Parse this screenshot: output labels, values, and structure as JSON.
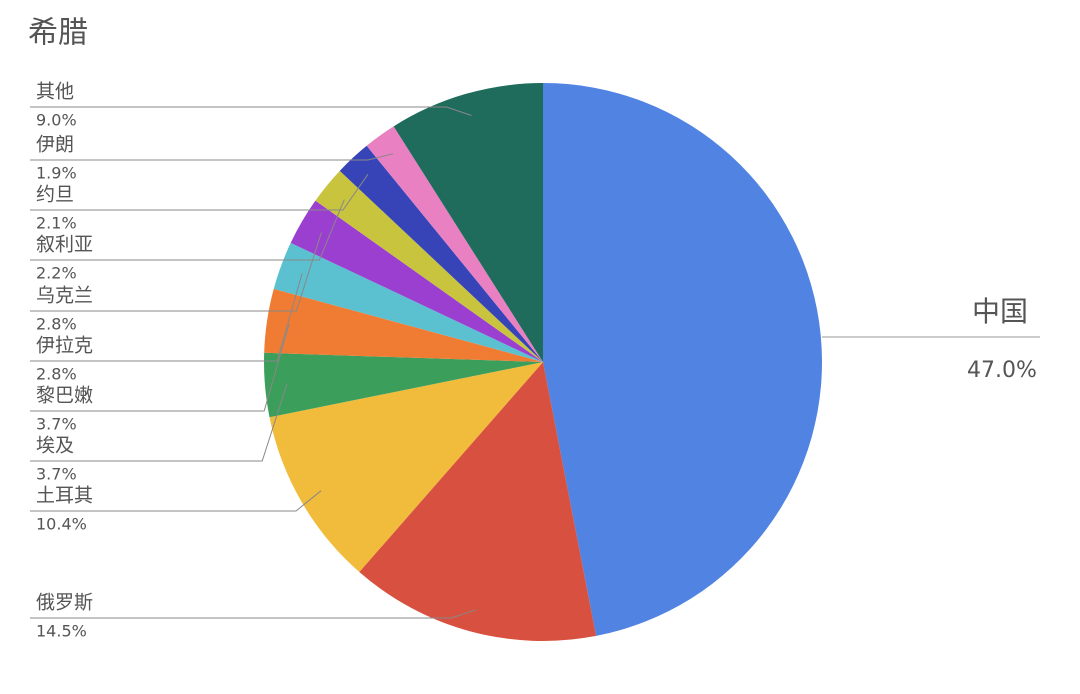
{
  "chart_data": {
    "type": "pie",
    "title": "希腊",
    "categories": [
      "中国",
      "俄罗斯",
      "土耳其",
      "埃及",
      "黎巴嫩",
      "伊拉克",
      "乌克兰",
      "叙利亚",
      "约旦",
      "伊朗",
      "其他"
    ],
    "values": [
      47,
      14.5,
      10.4,
      3.7,
      3.7,
      2.8,
      2.8,
      2.2,
      2.1,
      1.9,
      9
    ],
    "value_labels": [
      "47.0%",
      "14.5%",
      "10.4%",
      "3.7%",
      "3.7%",
      "2.8%",
      "2.8%",
      "2.2%",
      "2.1%",
      "1.9%",
      "9.0%"
    ],
    "colors": [
      "#5083e2",
      "#d8503f",
      "#f1bb3c",
      "#3c9e5b",
      "#f07c34",
      "#5bc0cf",
      "#9b3fd1",
      "#c8c43e",
      "#3644b8",
      "#e880c2",
      "#1f6b5c"
    ]
  }
}
